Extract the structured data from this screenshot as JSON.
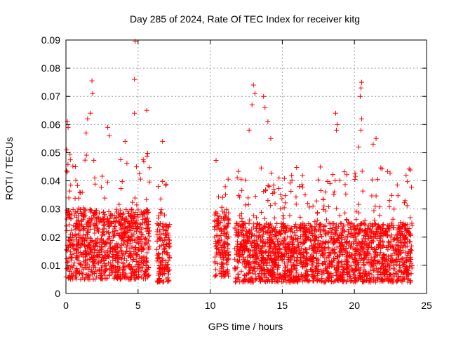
{
  "chart_data": {
    "type": "scatter",
    "title": "Day 285 of 2024, Rate Of TEC Index for receiver kitg",
    "xlabel": "GPS time / hours",
    "ylabel": "ROTI / TECUs",
    "xlim": [
      0,
      25
    ],
    "ylim": [
      0,
      0.09
    ],
    "xticks": [
      0,
      5,
      10,
      15,
      20,
      25
    ],
    "yticks": [
      0,
      0.01,
      0.02,
      0.03,
      0.04,
      0.05,
      0.06,
      0.07,
      0.08,
      0.09
    ],
    "xtick_labels": [
      "0",
      "5",
      "10",
      "15",
      "20",
      "25"
    ],
    "ytick_labels": [
      "0",
      "0.01",
      "0.02",
      "0.03",
      "0.04",
      "0.05",
      "0.06",
      "0.07",
      "0.08",
      "0.09"
    ],
    "grid": true,
    "marker": "plus",
    "color": "#ff0000",
    "density_profile": [
      {
        "x_start": 0.0,
        "x_end": 5.8,
        "core_min": 0.005,
        "core_max": 0.03,
        "peak": 0.05
      },
      {
        "x_start": 6.3,
        "x_end": 7.2,
        "core_min": 0.004,
        "core_max": 0.025,
        "peak": 0.04
      },
      {
        "x_start": 10.3,
        "x_end": 11.3,
        "core_min": 0.006,
        "core_max": 0.03,
        "peak": 0.048
      },
      {
        "x_start": 11.7,
        "x_end": 24.0,
        "core_min": 0.004,
        "core_max": 0.025,
        "peak": 0.045
      }
    ],
    "outliers": [
      {
        "x": 4.8,
        "y": 0.0895
      },
      {
        "x": 4.75,
        "y": 0.076
      },
      {
        "x": 1.8,
        "y": 0.0755
      },
      {
        "x": 1.85,
        "y": 0.071
      },
      {
        "x": 1.7,
        "y": 0.064
      },
      {
        "x": 0.1,
        "y": 0.061
      },
      {
        "x": 0.15,
        "y": 0.059
      },
      {
        "x": 1.5,
        "y": 0.062
      },
      {
        "x": 1.4,
        "y": 0.057
      },
      {
        "x": 2.9,
        "y": 0.059
      },
      {
        "x": 3.0,
        "y": 0.056
      },
      {
        "x": 4.75,
        "y": 0.064
      },
      {
        "x": 5.6,
        "y": 0.065
      },
      {
        "x": 4.1,
        "y": 0.054
      },
      {
        "x": 6.7,
        "y": 0.054
      },
      {
        "x": 13.0,
        "y": 0.074
      },
      {
        "x": 13.1,
        "y": 0.071
      },
      {
        "x": 12.9,
        "y": 0.067
      },
      {
        "x": 13.7,
        "y": 0.07
      },
      {
        "x": 13.8,
        "y": 0.066
      },
      {
        "x": 14.0,
        "y": 0.061
      },
      {
        "x": 12.7,
        "y": 0.058
      },
      {
        "x": 14.2,
        "y": 0.055
      },
      {
        "x": 18.7,
        "y": 0.064
      },
      {
        "x": 18.8,
        "y": 0.06
      },
      {
        "x": 18.75,
        "y": 0.058
      },
      {
        "x": 20.5,
        "y": 0.075
      },
      {
        "x": 20.45,
        "y": 0.073
      },
      {
        "x": 20.4,
        "y": 0.07
      },
      {
        "x": 20.5,
        "y": 0.062
      },
      {
        "x": 20.45,
        "y": 0.058
      },
      {
        "x": 20.3,
        "y": 0.052
      },
      {
        "x": 21.5,
        "y": 0.055
      },
      {
        "x": 21.3,
        "y": 0.053
      },
      {
        "x": 0.05,
        "y": 0.051
      }
    ]
  }
}
